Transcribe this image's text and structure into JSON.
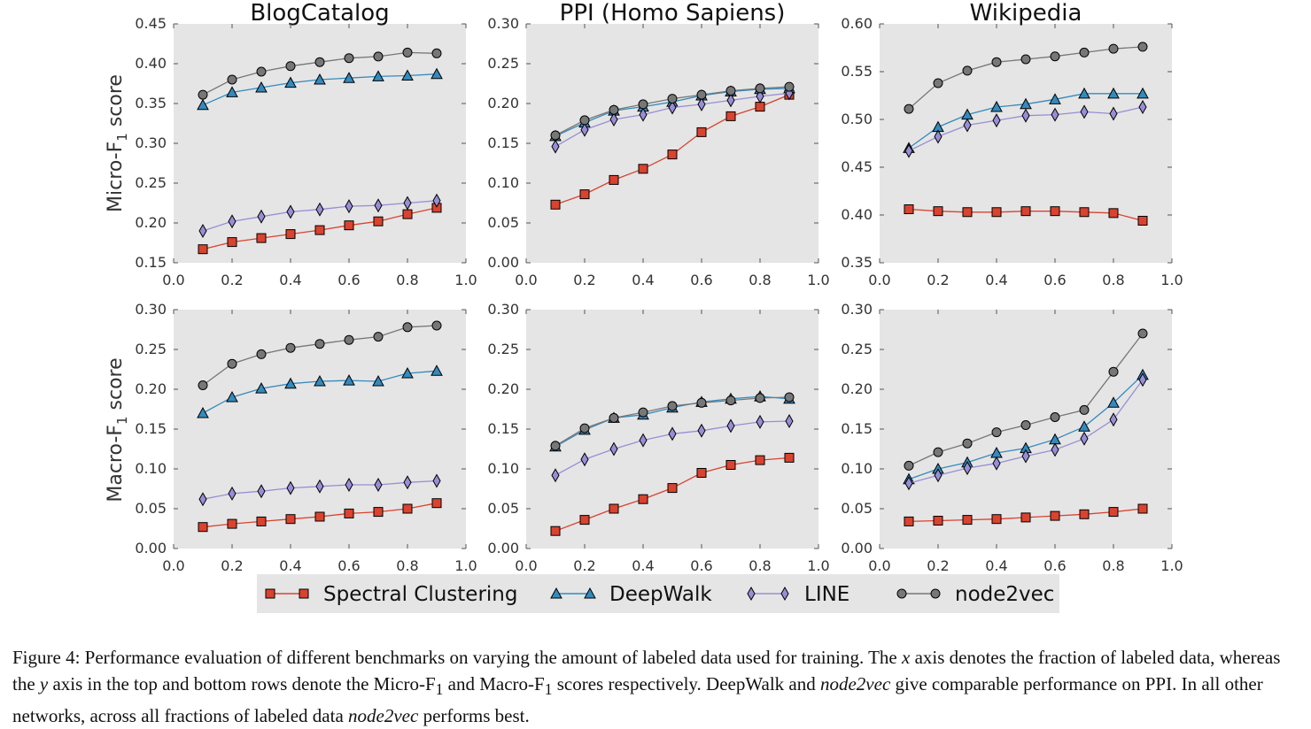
{
  "colors": {
    "spectral": "#d9432f",
    "deepwalk": "#348abd",
    "line": "#988ed5",
    "node2vec": "#777777",
    "panel_bg": "#e5e5e5",
    "legend_bg": "#e5e5e5"
  },
  "legend": [
    {
      "key": "spectral",
      "label": "Spectral Clustering",
      "marker": "square"
    },
    {
      "key": "deepwalk",
      "label": "DeepWalk",
      "marker": "triangle"
    },
    {
      "key": "line",
      "label": "LINE",
      "marker": "diamond"
    },
    {
      "key": "node2vec",
      "label": "node2vec",
      "marker": "circle"
    }
  ],
  "row_labels": {
    "micro": {
      "pre": "Micro-F",
      "sub": "1",
      "post": " score"
    },
    "macro": {
      "pre": "Macro-F",
      "sub": "1",
      "post": " score"
    }
  },
  "caption": {
    "figure": "Figure 4:",
    "t1": " Performance evaluation of different benchmarks on varying the amount of labeled data used for training. The ",
    "x": "x",
    "t2": " axis denotes the fraction of labeled data, whereas the ",
    "y": "y",
    "t3": " axis in the top and bottom rows denote the Micro-F",
    "sub1": "1",
    "t4": " and Macro-F",
    "sub2": "1",
    "t5": " scores respectively. DeepWalk and ",
    "n2v1": "node2vec",
    "t6": " give comparable performance on PPI. In all other networks, across all fractions of labeled data ",
    "n2v2": "node2vec",
    "t7": " performs best."
  },
  "chart_data": [
    {
      "type": "line",
      "title": "BlogCatalog",
      "row": "micro",
      "x": [
        0.1,
        0.2,
        0.3,
        0.4,
        0.5,
        0.6,
        0.7,
        0.8,
        0.9
      ],
      "xlim": [
        0.0,
        1.0
      ],
      "ylim": [
        0.15,
        0.45
      ],
      "xticks": [
        "0.0",
        "0.2",
        "0.4",
        "0.6",
        "0.8",
        "1.0"
      ],
      "yticks": [
        "0.15",
        "0.20",
        "0.25",
        "0.30",
        "0.35",
        "0.40",
        "0.45"
      ],
      "series": [
        {
          "key": "spectral",
          "values": [
            0.167,
            0.176,
            0.181,
            0.186,
            0.191,
            0.197,
            0.202,
            0.211,
            0.219
          ]
        },
        {
          "key": "deepwalk",
          "values": [
            0.348,
            0.364,
            0.37,
            0.376,
            0.38,
            0.382,
            0.384,
            0.385,
            0.387
          ]
        },
        {
          "key": "line",
          "values": [
            0.19,
            0.202,
            0.208,
            0.214,
            0.217,
            0.221,
            0.222,
            0.225,
            0.228
          ]
        },
        {
          "key": "node2vec",
          "values": [
            0.361,
            0.38,
            0.39,
            0.397,
            0.402,
            0.407,
            0.409,
            0.414,
            0.413
          ]
        }
      ]
    },
    {
      "type": "line",
      "title": "PPI (Homo Sapiens)",
      "row": "micro",
      "x": [
        0.1,
        0.2,
        0.3,
        0.4,
        0.5,
        0.6,
        0.7,
        0.8,
        0.9
      ],
      "xlim": [
        0.0,
        1.0
      ],
      "ylim": [
        0.0,
        0.3
      ],
      "xticks": [
        "0.0",
        "0.2",
        "0.4",
        "0.6",
        "0.8",
        "1.0"
      ],
      "yticks": [
        "0.00",
        "0.05",
        "0.10",
        "0.15",
        "0.20",
        "0.25",
        "0.30"
      ],
      "series": [
        {
          "key": "spectral",
          "values": [
            0.073,
            0.086,
            0.104,
            0.118,
            0.136,
            0.164,
            0.184,
            0.196,
            0.211
          ]
        },
        {
          "key": "deepwalk",
          "values": [
            0.159,
            0.176,
            0.191,
            0.196,
            0.202,
            0.21,
            0.215,
            0.218,
            0.219
          ]
        },
        {
          "key": "line",
          "values": [
            0.146,
            0.167,
            0.18,
            0.186,
            0.195,
            0.199,
            0.204,
            0.209,
            0.213
          ]
        },
        {
          "key": "node2vec",
          "values": [
            0.16,
            0.179,
            0.192,
            0.199,
            0.206,
            0.211,
            0.216,
            0.219,
            0.221
          ]
        }
      ]
    },
    {
      "type": "line",
      "title": "Wikipedia",
      "row": "micro",
      "x": [
        0.1,
        0.2,
        0.3,
        0.4,
        0.5,
        0.6,
        0.7,
        0.8,
        0.9
      ],
      "xlim": [
        0.0,
        1.0
      ],
      "ylim": [
        0.35,
        0.6
      ],
      "xticks": [
        "0.0",
        "0.2",
        "0.4",
        "0.6",
        "0.8",
        "1.0"
      ],
      "yticks": [
        "0.35",
        "0.40",
        "0.45",
        "0.50",
        "0.55",
        "0.60"
      ],
      "series": [
        {
          "key": "spectral",
          "values": [
            0.406,
            0.404,
            0.403,
            0.403,
            0.404,
            0.404,
            0.403,
            0.402,
            0.394
          ]
        },
        {
          "key": "deepwalk",
          "values": [
            0.47,
            0.492,
            0.505,
            0.513,
            0.516,
            0.521,
            0.527,
            0.527,
            0.527
          ]
        },
        {
          "key": "line",
          "values": [
            0.467,
            0.482,
            0.494,
            0.499,
            0.504,
            0.505,
            0.508,
            0.506,
            0.513
          ]
        },
        {
          "key": "node2vec",
          "values": [
            0.511,
            0.538,
            0.551,
            0.56,
            0.563,
            0.566,
            0.57,
            0.574,
            0.576
          ]
        }
      ]
    },
    {
      "type": "line",
      "title": "",
      "row": "macro",
      "x": [
        0.1,
        0.2,
        0.3,
        0.4,
        0.5,
        0.6,
        0.7,
        0.8,
        0.9
      ],
      "xlim": [
        0.0,
        1.0
      ],
      "ylim": [
        0.0,
        0.3
      ],
      "xticks": [
        "0.0",
        "0.2",
        "0.4",
        "0.6",
        "0.8",
        "1.0"
      ],
      "yticks": [
        "0.00",
        "0.05",
        "0.10",
        "0.15",
        "0.20",
        "0.25",
        "0.30"
      ],
      "series": [
        {
          "key": "spectral",
          "values": [
            0.027,
            0.031,
            0.034,
            0.037,
            0.04,
            0.044,
            0.046,
            0.05,
            0.057
          ]
        },
        {
          "key": "deepwalk",
          "values": [
            0.17,
            0.19,
            0.201,
            0.207,
            0.21,
            0.211,
            0.21,
            0.22,
            0.223
          ]
        },
        {
          "key": "line",
          "values": [
            0.062,
            0.069,
            0.072,
            0.076,
            0.078,
            0.08,
            0.08,
            0.083,
            0.085
          ]
        },
        {
          "key": "node2vec",
          "values": [
            0.205,
            0.232,
            0.244,
            0.252,
            0.257,
            0.262,
            0.266,
            0.278,
            0.28
          ]
        }
      ]
    },
    {
      "type": "line",
      "title": "",
      "row": "macro",
      "x": [
        0.1,
        0.2,
        0.3,
        0.4,
        0.5,
        0.6,
        0.7,
        0.8,
        0.9
      ],
      "xlim": [
        0.0,
        1.0
      ],
      "ylim": [
        0.0,
        0.3
      ],
      "xticks": [
        "0.0",
        "0.2",
        "0.4",
        "0.6",
        "0.8",
        "1.0"
      ],
      "yticks": [
        "0.00",
        "0.05",
        "0.10",
        "0.15",
        "0.20",
        "0.25",
        "0.30"
      ],
      "series": [
        {
          "key": "spectral",
          "values": [
            0.022,
            0.036,
            0.05,
            0.062,
            0.076,
            0.095,
            0.105,
            0.111,
            0.114
          ]
        },
        {
          "key": "deepwalk",
          "values": [
            0.128,
            0.149,
            0.164,
            0.168,
            0.177,
            0.184,
            0.188,
            0.191,
            0.188
          ]
        },
        {
          "key": "line",
          "values": [
            0.092,
            0.112,
            0.125,
            0.136,
            0.144,
            0.148,
            0.154,
            0.159,
            0.16
          ]
        },
        {
          "key": "node2vec",
          "values": [
            0.129,
            0.151,
            0.164,
            0.171,
            0.179,
            0.183,
            0.186,
            0.189,
            0.19
          ]
        }
      ]
    },
    {
      "type": "line",
      "title": "",
      "row": "macro",
      "x": [
        0.1,
        0.2,
        0.3,
        0.4,
        0.5,
        0.6,
        0.7,
        0.8,
        0.9
      ],
      "xlim": [
        0.0,
        1.0
      ],
      "ylim": [
        0.0,
        0.3
      ],
      "xticks": [
        "0.0",
        "0.2",
        "0.4",
        "0.6",
        "0.8",
        "1.0"
      ],
      "yticks": [
        "0.00",
        "0.05",
        "0.10",
        "0.15",
        "0.20",
        "0.25",
        "0.30"
      ],
      "series": [
        {
          "key": "spectral",
          "values": [
            0.034,
            0.035,
            0.036,
            0.037,
            0.039,
            0.041,
            0.043,
            0.046,
            0.05
          ]
        },
        {
          "key": "deepwalk",
          "values": [
            0.087,
            0.1,
            0.108,
            0.12,
            0.126,
            0.137,
            0.153,
            0.183,
            0.218
          ]
        },
        {
          "key": "line",
          "values": [
            0.082,
            0.092,
            0.101,
            0.107,
            0.116,
            0.124,
            0.138,
            0.162,
            0.212
          ]
        },
        {
          "key": "node2vec",
          "values": [
            0.104,
            0.121,
            0.132,
            0.146,
            0.155,
            0.165,
            0.174,
            0.222,
            0.27
          ]
        }
      ]
    }
  ]
}
